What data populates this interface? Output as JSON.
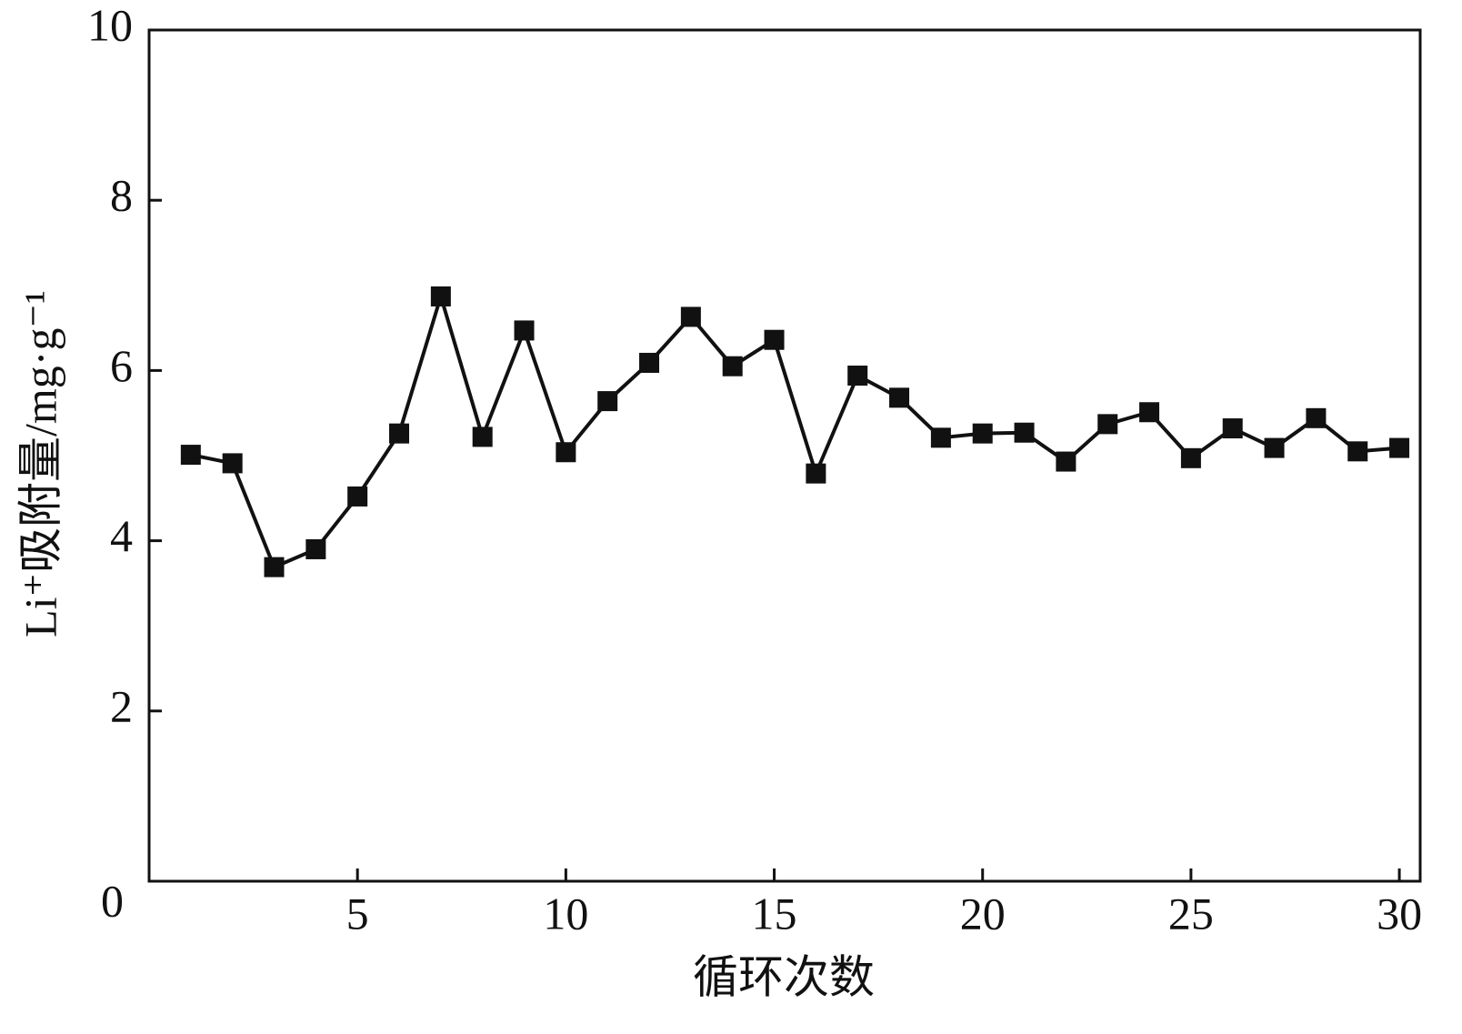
{
  "chart_data": {
    "type": "line",
    "x_label": "循环次数",
    "y_label": "Li⁺吸附量/mg·g⁻¹",
    "x": [
      1,
      2,
      3,
      4,
      5,
      6,
      7,
      8,
      9,
      10,
      11,
      12,
      13,
      14,
      15,
      16,
      17,
      18,
      19,
      20,
      21,
      22,
      23,
      24,
      25,
      26,
      27,
      28,
      29,
      30
    ],
    "series": [
      {
        "color": "#111111",
        "values": [
          5.01,
          4.91,
          3.69,
          3.9,
          4.52,
          5.26,
          6.87,
          5.22,
          6.47,
          5.04,
          5.64,
          6.09,
          6.63,
          6.05,
          6.36,
          4.79,
          5.94,
          5.68,
          5.21,
          5.26,
          5.27,
          4.93,
          5.37,
          5.51,
          4.97,
          5.32,
          5.09,
          5.44,
          5.05,
          5.09
        ]
      }
    ],
    "xlim": [
      0,
      30.5
    ],
    "xticks": [
      5,
      10,
      15,
      20,
      25,
      30
    ],
    "ylim": [
      0,
      10
    ],
    "yticks": [
      0,
      2,
      4,
      6,
      8,
      10
    ],
    "grid": false
  }
}
